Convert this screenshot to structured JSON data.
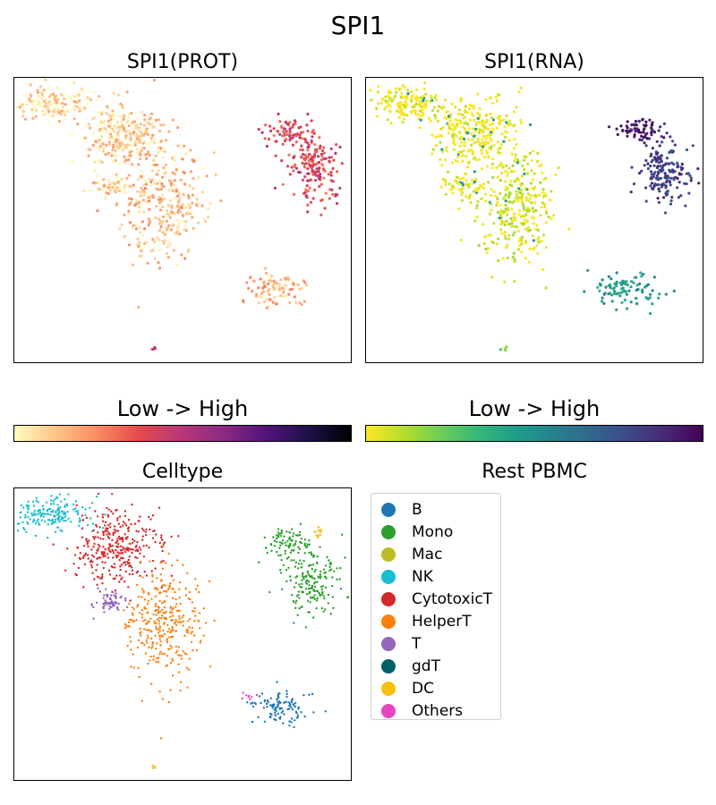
{
  "figure": {
    "title": "SPI1"
  },
  "panels": {
    "prot": {
      "title": "SPI1(PROT)"
    },
    "rna": {
      "title": "SPI1(RNA)"
    },
    "celltype": {
      "title": "Celltype"
    },
    "rest": {
      "title": "Rest PBMC"
    }
  },
  "colorbars": {
    "prot": {
      "label": "Low  ->  High",
      "colormap": "magma_r",
      "stops": [
        "#fcfdbf",
        "#fec287",
        "#fc8961",
        "#e3494b",
        "#b73779",
        "#8c2981",
        "#51127c",
        "#1d1147",
        "#000004"
      ]
    },
    "rna": {
      "label": "Low  ->  High",
      "colormap": "viridis_r",
      "stops": [
        "#fde725",
        "#b5de2b",
        "#6ece58",
        "#35b779",
        "#1f9e89",
        "#26828e",
        "#31688e",
        "#3e4989",
        "#482878",
        "#440154"
      ]
    }
  },
  "legend": {
    "items": [
      {
        "label": "B",
        "color": "#1f77b4"
      },
      {
        "label": "Mono",
        "color": "#2ca02c"
      },
      {
        "label": "Mac",
        "color": "#bcbd22"
      },
      {
        "label": "NK",
        "color": "#17becf"
      },
      {
        "label": "CytotoxicT",
        "color": "#d62728"
      },
      {
        "label": "HelperT",
        "color": "#ff7f0e"
      },
      {
        "label": "T",
        "color": "#9467bd"
      },
      {
        "label": "gdT",
        "color": "#005f6b"
      },
      {
        "label": "DC",
        "color": "#f5c010"
      },
      {
        "label": "Others",
        "color": "#e845c0"
      }
    ]
  },
  "chart_data": [
    {
      "type": "scatter",
      "title": "SPI1(PROT)",
      "xlabel": "",
      "ylabel": "",
      "xlim": [
        0,
        100
      ],
      "ylim": [
        0,
        100
      ],
      "axes_ticks": false,
      "colormap": "magma_r",
      "clusters": [
        {
          "name": "NK",
          "cx": 12,
          "cy": 91,
          "sx": 6,
          "sy": 3,
          "n": 160,
          "level": 0.08
        },
        {
          "name": "CytotoxicT",
          "cx": 33,
          "cy": 80,
          "sx": 6,
          "sy": 6,
          "n": 280,
          "level": 0.1
        },
        {
          "name": "HelperT",
          "cx": 44,
          "cy": 55,
          "sx": 6,
          "sy": 10,
          "n": 300,
          "level": 0.14
        },
        {
          "name": "T",
          "cx": 29,
          "cy": 62,
          "sx": 3,
          "sy": 2,
          "n": 50,
          "level": 0.1
        },
        {
          "name": "Mono-1",
          "cx": 81,
          "cy": 81,
          "sx": 3.5,
          "sy": 2.5,
          "n": 70,
          "level": 0.4
        },
        {
          "name": "Mono-2",
          "cx": 88,
          "cy": 68,
          "sx": 4,
          "sy": 6,
          "n": 170,
          "level": 0.4
        },
        {
          "name": "B",
          "cx": 77,
          "cy": 26,
          "sx": 5,
          "sy": 3,
          "n": 90,
          "level": 0.16
        },
        {
          "name": "DC",
          "cx": 41,
          "cy": 5,
          "sx": 0.4,
          "sy": 0.5,
          "n": 4,
          "level": 0.45
        }
      ]
    },
    {
      "type": "scatter",
      "title": "SPI1(RNA)",
      "xlabel": "",
      "ylabel": "",
      "xlim": [
        0,
        100
      ],
      "ylim": [
        0,
        100
      ],
      "axes_ticks": false,
      "colormap": "viridis_r",
      "clusters": [
        {
          "name": "NK",
          "cx": 12,
          "cy": 91,
          "sx": 6,
          "sy": 3,
          "n": 160,
          "level": 0.0
        },
        {
          "name": "CytotoxicT",
          "cx": 33,
          "cy": 80,
          "sx": 6,
          "sy": 6,
          "n": 280,
          "level": 0.0
        },
        {
          "name": "HelperT",
          "cx": 44,
          "cy": 55,
          "sx": 6,
          "sy": 10,
          "n": 300,
          "level": 0.05
        },
        {
          "name": "T",
          "cx": 29,
          "cy": 62,
          "sx": 3,
          "sy": 2,
          "n": 50,
          "level": 0.0
        },
        {
          "name": "Mono-1",
          "cx": 81,
          "cy": 81,
          "sx": 3.5,
          "sy": 2.5,
          "n": 70,
          "level": 0.95
        },
        {
          "name": "Mono-2",
          "cx": 88,
          "cy": 68,
          "sx": 4,
          "sy": 6,
          "n": 170,
          "level": 0.8
        },
        {
          "name": "B",
          "cx": 77,
          "cy": 26,
          "sx": 5,
          "sy": 3,
          "n": 90,
          "level": 0.45
        },
        {
          "name": "DC",
          "cx": 41,
          "cy": 5,
          "sx": 0.4,
          "sy": 0.5,
          "n": 4,
          "level": 0.25
        }
      ]
    },
    {
      "type": "scatter",
      "title": "Celltype",
      "xlabel": "",
      "ylabel": "",
      "xlim": [
        0,
        100
      ],
      "ylim": [
        0,
        100
      ],
      "axes_ticks": false,
      "legend_title": "Rest PBMC",
      "legend_position": "right",
      "clusters": [
        {
          "name": "NK",
          "cx": 12,
          "cy": 91,
          "sx": 6,
          "sy": 3,
          "n": 180,
          "category": "NK"
        },
        {
          "name": "CytotoxicT",
          "cx": 30,
          "cy": 80,
          "sx": 6,
          "sy": 6,
          "n": 320,
          "category": "CytotoxicT"
        },
        {
          "name": "HelperT",
          "cx": 44,
          "cy": 55,
          "sx": 6,
          "sy": 10,
          "n": 330,
          "category": "HelperT"
        },
        {
          "name": "T",
          "cx": 28,
          "cy": 61,
          "sx": 2.5,
          "sy": 2,
          "n": 60,
          "category": "T"
        },
        {
          "name": "Mono-1",
          "cx": 81,
          "cy": 81,
          "sx": 3.5,
          "sy": 2.5,
          "n": 80,
          "category": "Mono"
        },
        {
          "name": "Mono-2",
          "cx": 88,
          "cy": 68,
          "sx": 4,
          "sy": 6,
          "n": 180,
          "category": "Mono"
        },
        {
          "name": "B",
          "cx": 79,
          "cy": 25,
          "sx": 4,
          "sy": 3,
          "n": 110,
          "category": "B"
        },
        {
          "name": "DC-1",
          "cx": 90,
          "cy": 85,
          "sx": 0.8,
          "sy": 1.2,
          "n": 14,
          "category": "DC"
        },
        {
          "name": "DC-2",
          "cx": 41,
          "cy": 5,
          "sx": 0.4,
          "sy": 0.4,
          "n": 4,
          "category": "DC"
        },
        {
          "name": "Others",
          "cx": 68,
          "cy": 29,
          "sx": 1.5,
          "sy": 0.6,
          "n": 8,
          "category": "Others"
        }
      ]
    }
  ]
}
